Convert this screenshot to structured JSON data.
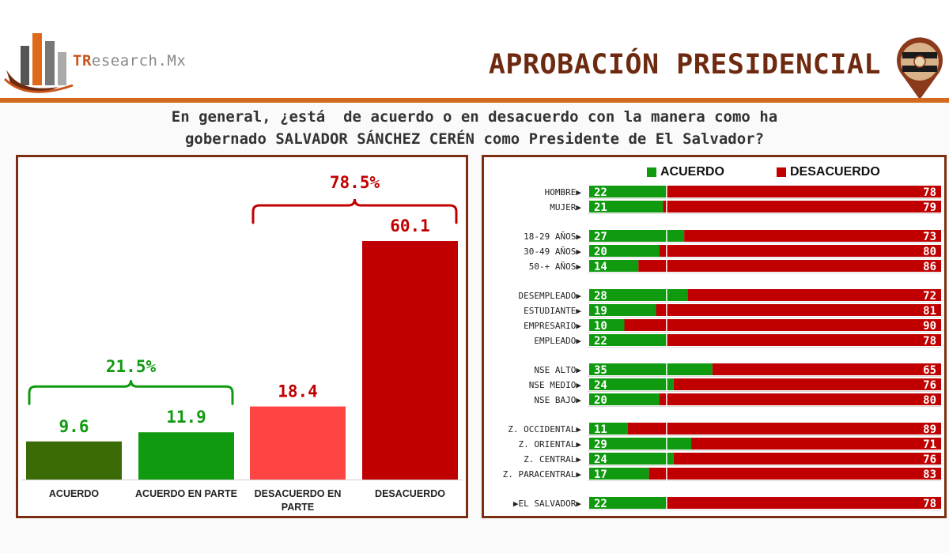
{
  "header": {
    "brand_prefix": "TR",
    "brand_rest": "esearch.Mx",
    "title": "APROBACIÓN PRESIDENCIAL",
    "logo_icon": "bar-chart-logo-icon",
    "pin_icon": "map-pin-flag-icon"
  },
  "question": {
    "line1": "En general, ¿está  de acuerdo o en desacuerdo con la manera como ha",
    "line2": "gobernado SALVADOR SÁNCHEZ CERÉN como Presidente de El Salvador?"
  },
  "colors": {
    "accent": "#d2691e",
    "title": "#6e2a10",
    "border": "#7b2e12",
    "acuerdo": "#3a6b06",
    "acuerdo_parte": "#109a10",
    "desacuerdo_parte": "#ff4444",
    "desacuerdo": "#c00000",
    "green_label": "#109a10",
    "red_label": "#c00000"
  },
  "chart_data": [
    {
      "type": "bar",
      "categories": [
        "ACUERDO",
        "ACUERDO EN PARTE",
        "DESACUERDO EN PARTE",
        "DESACUERDO"
      ],
      "values": [
        9.6,
        11.9,
        18.4,
        60.1
      ],
      "value_labels": [
        "9.6",
        "11.9",
        "18.4",
        "60.1"
      ],
      "ylim": [
        0,
        60.1
      ],
      "grid": false,
      "annotations": [
        {
          "label": "21.5%",
          "spans": [
            "ACUERDO",
            "ACUERDO EN PARTE"
          ]
        },
        {
          "label": "78.5%",
          "spans": [
            "DESACUERDO EN PARTE",
            "DESACUERDO"
          ]
        }
      ]
    },
    {
      "type": "bar",
      "orientation": "horizontal-stacked-100",
      "legend": {
        "position": "top",
        "entries": [
          "ACUERDO",
          "DESACUERDO"
        ]
      },
      "groups": [
        {
          "rows": [
            {
              "label": "HOMBRE",
              "acuerdo": 22,
              "desacuerdo": 78
            },
            {
              "label": "MUJER",
              "acuerdo": 21,
              "desacuerdo": 79
            }
          ]
        },
        {
          "rows": [
            {
              "label": "18-29 AÑOS",
              "acuerdo": 27,
              "desacuerdo": 73
            },
            {
              "label": "30-49 AÑOS",
              "acuerdo": 20,
              "desacuerdo": 80
            },
            {
              "label": "50-+ AÑOS",
              "acuerdo": 14,
              "desacuerdo": 86
            }
          ]
        },
        {
          "rows": [
            {
              "label": "DESEMPLEADO",
              "acuerdo": 28,
              "desacuerdo": 72
            },
            {
              "label": "ESTUDIANTE",
              "acuerdo": 19,
              "desacuerdo": 81
            },
            {
              "label": "EMPRESARIO",
              "acuerdo": 10,
              "desacuerdo": 90
            },
            {
              "label": "EMPLEADO",
              "acuerdo": 22,
              "desacuerdo": 78
            }
          ]
        },
        {
          "rows": [
            {
              "label": "NSE ALTO",
              "acuerdo": 35,
              "desacuerdo": 65
            },
            {
              "label": "NSE MEDIO",
              "acuerdo": 24,
              "desacuerdo": 76
            },
            {
              "label": "NSE BAJO",
              "acuerdo": 20,
              "desacuerdo": 80
            }
          ]
        },
        {
          "rows": [
            {
              "label": "Z. OCCIDENTAL",
              "acuerdo": 11,
              "desacuerdo": 89
            },
            {
              "label": "Z. ORIENTAL",
              "acuerdo": 29,
              "desacuerdo": 71
            },
            {
              "label": "Z. CENTRAL",
              "acuerdo": 24,
              "desacuerdo": 76
            },
            {
              "label": "Z. PARACENTRAL",
              "acuerdo": 17,
              "desacuerdo": 83
            }
          ]
        },
        {
          "rows": [
            {
              "label": "EL SALVADOR",
              "acuerdo": 22,
              "desacuerdo": 78,
              "total": true
            }
          ]
        }
      ],
      "reference_value": 22
    }
  ]
}
